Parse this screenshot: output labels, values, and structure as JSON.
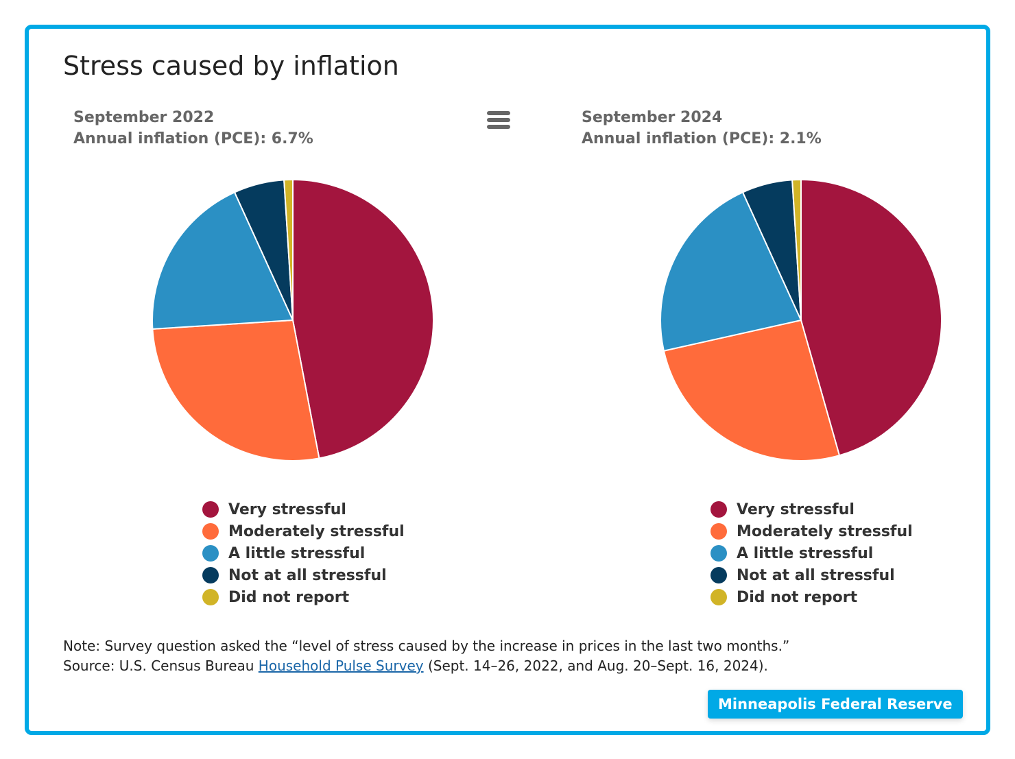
{
  "title": "Stress caused by inflation",
  "colors": {
    "frame": "#00a9e6",
    "Very stressful": "#a3153e",
    "Moderately stressful": "#ff6b3b",
    "A little stressful": "#2b90c4",
    "Not at all stressful": "#053b5e",
    "Did not report": "#d1b427"
  },
  "menu_icon": "hamburger-menu-icon",
  "chart_data": [
    {
      "type": "pie",
      "subtitle_line1": "September 2022",
      "subtitle_line2": "Annual inflation (PCE): 6.7%",
      "categories": [
        "Very stressful",
        "Moderately stressful",
        "A little stressful",
        "Not at all stressful",
        "Did not report"
      ],
      "values": [
        47.0,
        27.0,
        19.2,
        5.8,
        1.0
      ],
      "legend": "bottom"
    },
    {
      "type": "pie",
      "subtitle_line1": "September 2024",
      "subtitle_line2": "Annual inflation (PCE): 2.1%",
      "categories": [
        "Very stressful",
        "Moderately stressful",
        "A little stressful",
        "Not at all stressful",
        "Did not report"
      ],
      "values": [
        45.6,
        25.9,
        21.7,
        5.8,
        1.0
      ],
      "legend": "bottom"
    }
  ],
  "note": {
    "line1": "Note: Survey question asked the “level of stress caused by the increase in prices in the last two months.”",
    "source_prefix": "Source: U.S. Census Bureau ",
    "source_link": "Household Pulse Survey",
    "source_suffix": " (Sept. 14–26, 2022, and Aug. 20–Sept. 16, 2024)."
  },
  "badge": "Minneapolis Federal Reserve"
}
